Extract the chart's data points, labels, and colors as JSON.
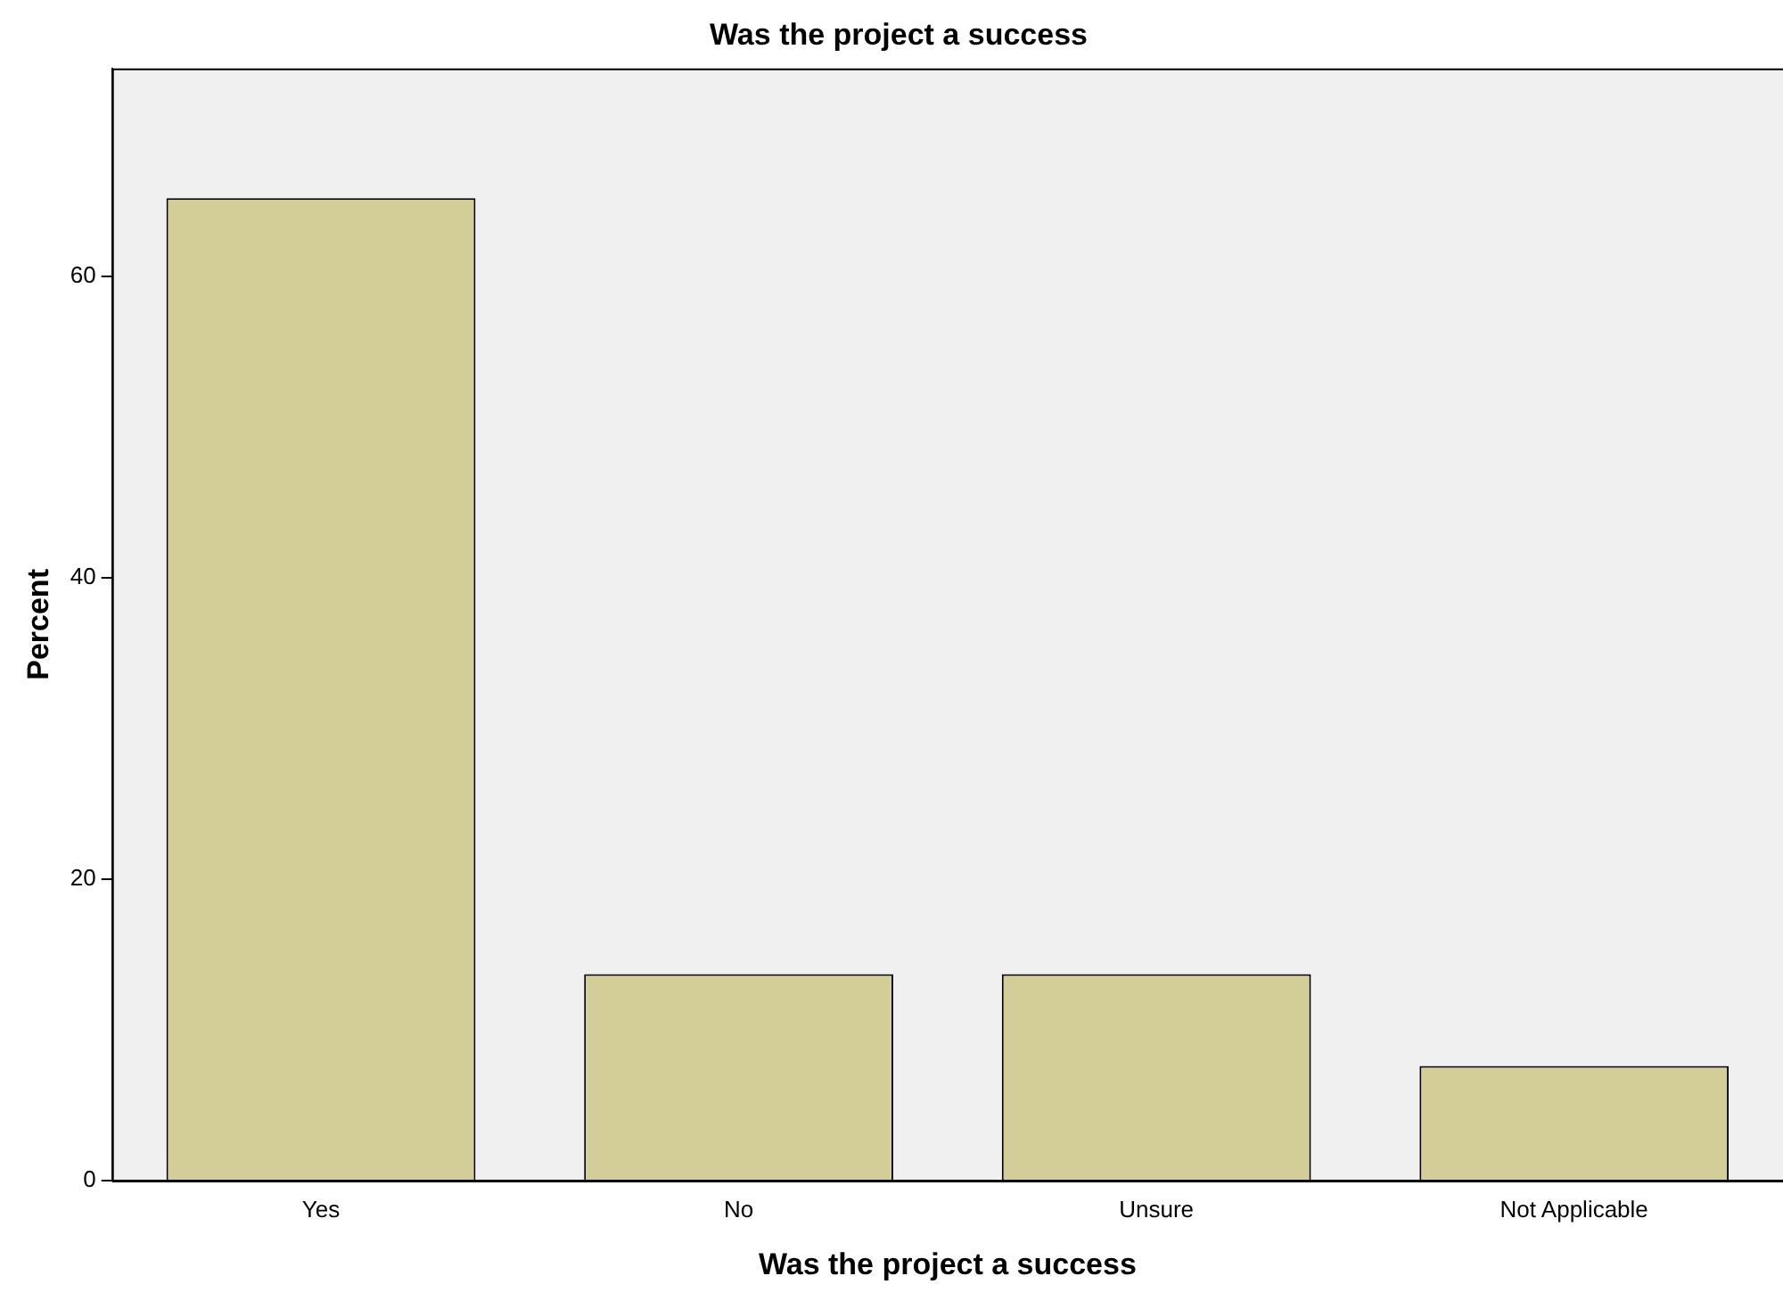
{
  "chart_data": {
    "type": "bar",
    "title": "Was the project a success",
    "xlabel": "Was the project a success",
    "ylabel": "Percent",
    "categories": [
      "Yes",
      "No",
      "Unsure",
      "Not Applicable"
    ],
    "values": [
      65.2,
      13.7,
      13.7,
      7.6
    ],
    "color": "#d3ce97",
    "ylim": [
      0,
      73.8
    ],
    "yticks": [
      0,
      20,
      40,
      60
    ],
    "grid": false,
    "legend": false
  }
}
